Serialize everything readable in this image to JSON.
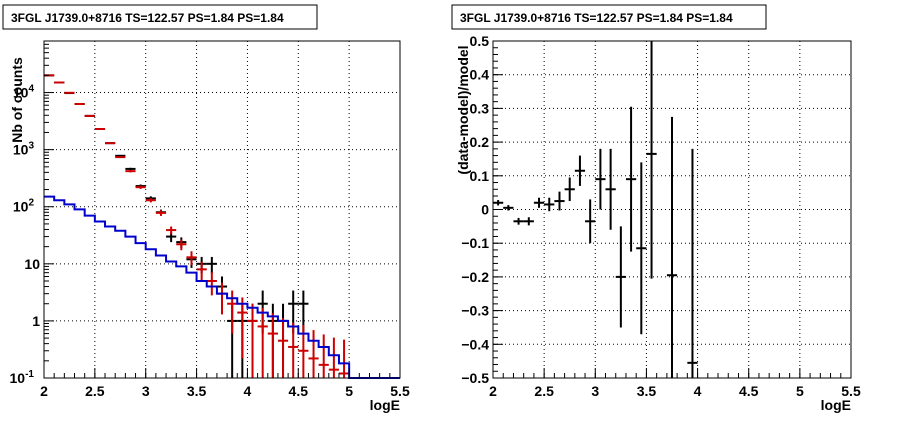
{
  "chart_data": [
    {
      "type": "histogram",
      "title": "3FGL J1739.0+8716 TS=122.57 PS=1.84 PS=1.84",
      "xlabel": "logE",
      "ylabel": "Nb of counts",
      "xlim": [
        2,
        5.5
      ],
      "ylim": [
        0.1,
        80000
      ],
      "y_scale": "log",
      "grid": true,
      "x_ticks": [
        "2",
        "2.5",
        "3",
        "3.5",
        "4",
        "4.5",
        "5",
        "5.5"
      ],
      "y_ticks": [
        {
          "value": 0.1,
          "label": "10",
          "exp": "-1"
        },
        {
          "value": 1,
          "label": "1",
          "exp": ""
        },
        {
          "value": 10,
          "label": "10",
          "exp": ""
        },
        {
          "value": 100,
          "label": "10",
          "exp": "2"
        },
        {
          "value": 1000,
          "label": "10",
          "exp": "3"
        },
        {
          "value": 10000,
          "label": "10",
          "exp": "4"
        }
      ],
      "bin_edges": [
        2.0,
        2.1,
        2.2,
        2.3,
        2.4,
        2.5,
        2.6,
        2.7,
        2.8,
        2.9,
        3.0,
        3.1,
        3.2,
        3.3,
        3.4,
        3.5,
        3.6,
        3.7,
        3.8,
        3.9,
        4.0,
        4.1,
        4.2,
        4.3,
        4.4,
        4.5,
        4.6,
        4.7,
        4.8,
        4.9,
        5.0,
        5.1,
        5.2,
        5.3,
        5.4,
        5.5
      ],
      "series": [
        {
          "color": "#000000",
          "style": "errorbar",
          "x": [
            2.05,
            2.15,
            2.25,
            2.35,
            2.45,
            2.55,
            2.65,
            2.75,
            2.85,
            2.95,
            3.05,
            3.15,
            3.25,
            3.35,
            3.45,
            3.55,
            3.65,
            3.75,
            3.85,
            3.95,
            4.05,
            4.15,
            4.25,
            4.35,
            4.45,
            4.55
          ],
          "y": [
            20000,
            15000,
            9800,
            6300,
            3900,
            2300,
            1300,
            780,
            460,
            230,
            140,
            80,
            30,
            24,
            12,
            10,
            10,
            4,
            1,
            1,
            1,
            2,
            1,
            1,
            2,
            2
          ],
          "yerr": [
            140,
            120,
            99,
            79,
            62,
            48,
            36,
            28,
            21,
            15,
            12,
            9,
            6,
            5,
            3.5,
            3.2,
            3.2,
            2,
            1,
            1,
            1,
            1.4,
            1,
            1,
            1.4,
            1.4
          ]
        },
        {
          "color": "#cc0000",
          "style": "errorbar",
          "x": [
            2.05,
            2.15,
            2.25,
            2.35,
            2.45,
            2.55,
            2.65,
            2.75,
            2.85,
            2.95,
            3.05,
            3.15,
            3.25,
            3.35,
            3.45,
            3.55,
            3.65,
            3.75,
            3.85,
            3.95,
            4.05,
            4.15,
            4.25,
            4.35,
            4.45,
            4.55,
            4.65,
            4.75,
            4.85,
            4.95
          ],
          "y": [
            20000,
            15000,
            9900,
            6300,
            3900,
            2300,
            1300,
            740,
            420,
            220,
            130,
            78,
            39,
            22,
            13,
            8,
            5,
            3,
            2,
            1.4,
            1,
            0.8,
            0.6,
            0.45,
            0.35,
            0.3,
            0.22,
            0.17,
            0.14,
            0.12
          ],
          "yerr": [
            140,
            120,
            99,
            79,
            62,
            48,
            36,
            27,
            20,
            15,
            11,
            9,
            6,
            4.7,
            3.6,
            2.8,
            2.2,
            1.7,
            1.4,
            1.18,
            1,
            0.89,
            0.77,
            0.67,
            0.59,
            0.55,
            0.47,
            0.41,
            0.37,
            0.35
          ]
        },
        {
          "color": "#0000cc",
          "style": "step",
          "y": [
            150,
            130,
            110,
            90,
            70,
            55,
            45,
            38,
            30,
            23,
            18,
            14,
            11,
            9,
            7,
            5,
            4,
            3,
            2.5,
            2,
            1.7,
            1.4,
            1.2,
            1,
            0.8,
            0.6,
            0.45,
            0.35,
            0.25,
            0.18,
            0.1,
            0.1,
            0.1,
            0.1,
            0.1
          ]
        }
      ]
    },
    {
      "type": "errorbar",
      "title": "3FGL J1739.0+8716 TS=122.57 PS=1.84 PS=1.84",
      "xlabel": "logE",
      "ylabel": "(data-model)/model",
      "xlim": [
        2,
        5.5
      ],
      "ylim": [
        -0.5,
        0.5
      ],
      "grid": true,
      "x_ticks": [
        "2",
        "2.5",
        "3",
        "3.5",
        "4",
        "4.5",
        "5",
        "5.5"
      ],
      "y_ticks": [
        {
          "value": -0.5,
          "label": "−0.5"
        },
        {
          "value": -0.4,
          "label": "−0.4"
        },
        {
          "value": -0.3,
          "label": "−0.3"
        },
        {
          "value": -0.2,
          "label": "−0.2"
        },
        {
          "value": -0.1,
          "label": "−0.1"
        },
        {
          "value": 0,
          "label": "0"
        },
        {
          "value": 0.1,
          "label": "0.1"
        },
        {
          "value": 0.2,
          "label": "0.2"
        },
        {
          "value": 0.3,
          "label": "0.3"
        },
        {
          "value": 0.4,
          "label": "0.4"
        },
        {
          "value": 0.5,
          "label": "0.5"
        }
      ],
      "series": [
        {
          "color": "#000000",
          "x": [
            2.05,
            2.15,
            2.25,
            2.35,
            2.45,
            2.55,
            2.65,
            2.75,
            2.85,
            2.95,
            3.05,
            3.15,
            3.25,
            3.35,
            3.45,
            3.55,
            3.75,
            3.95
          ],
          "y": [
            0.02,
            0.005,
            -0.035,
            -0.035,
            0.02,
            0.015,
            0.025,
            0.06,
            0.115,
            -0.035,
            0.09,
            0.06,
            -0.2,
            0.09,
            -0.115,
            0.165,
            -0.195,
            -0.455
          ],
          "yerr": [
            0.008,
            0.008,
            0.01,
            0.012,
            0.015,
            0.02,
            0.028,
            0.035,
            0.045,
            0.065,
            0.09,
            0.12,
            0.15,
            0.215,
            0.255,
            0.37,
            0.47,
            0.635
          ]
        }
      ]
    }
  ]
}
